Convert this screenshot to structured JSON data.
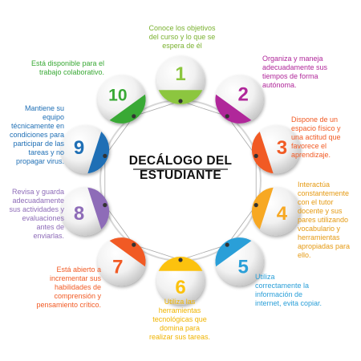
{
  "title": [
    "DECÁLOGO DEL",
    "ESTUDIANTE"
  ],
  "items": [
    {
      "number": "1",
      "color": "#8cc63f",
      "text": "Conoce los objetivos\ndel curso y lo que se\nespera de él"
    },
    {
      "number": "2",
      "color": "#b0279a",
      "text": "Organiza y maneja\nadecuadamente sus\ntiempos de forma\nautónoma."
    },
    {
      "number": "3",
      "color": "#f15a24",
      "text": "Dispone de un\nespacio físico y\nuna actitud que\nfavorece el\naprendizaje."
    },
    {
      "number": "4",
      "color": "#f7a823",
      "text": "Interactúa\nconstantemente\ncon el tutor\ndocente y sus\npares utilizando\nvocabulario y\nherramientas\napropiadas para\nello."
    },
    {
      "number": "5",
      "color": "#2a9fd8",
      "text": "Utiliza\ncorrectamente la\ninformación de\ninternet, evita copiar."
    },
    {
      "number": "6",
      "color": "#fcc20e",
      "text": "Utiliza las\nherramientas\ntecnológicas que\ndomina para\nrealizar sus tareas."
    },
    {
      "number": "7",
      "color": "#f15a24",
      "text": "Está abierto a\nincrementar sus\nhabilidades de\ncomprensión y\npensamiento crítico."
    },
    {
      "number": "8",
      "color": "#8e6cb8",
      "text": "Revisa y guarda\nadecuadamente\nsus actividades y\nevaluaciones\nantes de\nenviarlas."
    },
    {
      "number": "9",
      "color": "#1f6fb5",
      "text": "Mantiene su\nequipo\ntécnicamente en\ncondiciones para\nparticipar de las\ntareas y no\npropagar virus."
    },
    {
      "number": "10",
      "color": "#39a935",
      "text": "Está disponible para el\ntrabajo colaborativo."
    }
  ]
}
